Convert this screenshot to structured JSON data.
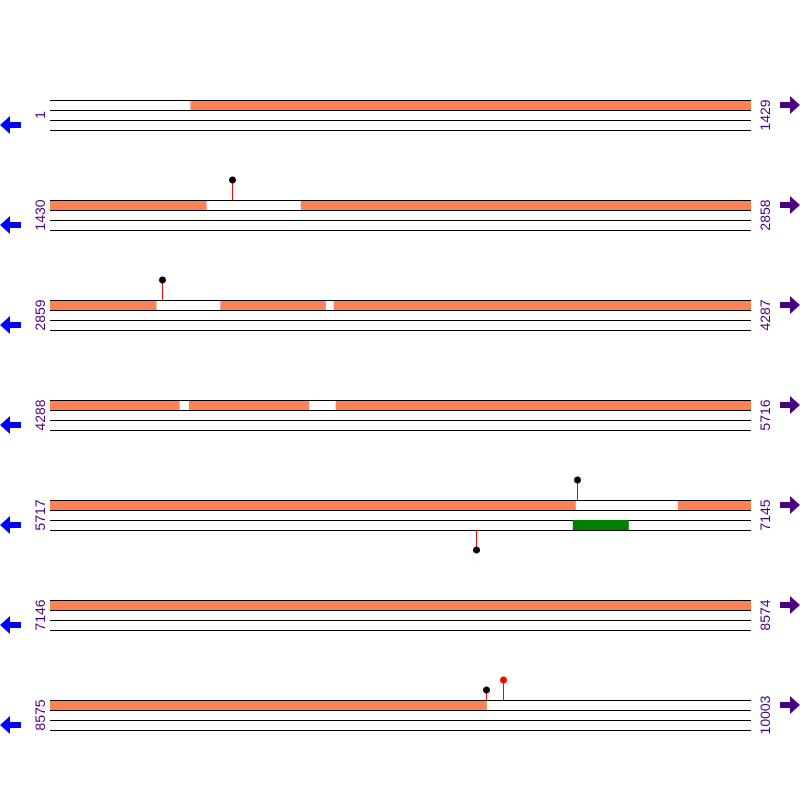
{
  "colors": {
    "feature": "#ff8256",
    "track_line": "#000000",
    "label": "#4b0082",
    "forward_arrow": "#4b0082",
    "reverse_arrow": "#0000ff",
    "marker_stem": "#ff0000",
    "marker_black": "#000000",
    "marker_red": "#ff0000",
    "green_box": "#008000"
  },
  "icons": {
    "forward": "arrow-right-icon",
    "reverse": "arrow-left-icon"
  },
  "rows": [
    {
      "start": 1,
      "end": 1429,
      "start_label": "1",
      "end_label": "1429",
      "forward_segments": [
        [
          287,
          1429
        ]
      ],
      "reverse_segments": [],
      "markers": []
    },
    {
      "start": 1430,
      "end": 2858,
      "start_label": "1430",
      "end_label": "2858",
      "forward_segments": [
        [
          1430,
          1749
        ],
        [
          1941,
          2858
        ]
      ],
      "reverse_segments": [],
      "markers": [
        {
          "pos": 1800,
          "strand": "forward",
          "color": "black",
          "tall": true
        }
      ]
    },
    {
      "start": 2859,
      "end": 4287,
      "start_label": "2859",
      "end_label": "4287",
      "forward_segments": [
        [
          2859,
          3076
        ],
        [
          3206,
          3421
        ],
        [
          3437,
          4287
        ]
      ],
      "reverse_segments": [],
      "markers": [
        {
          "pos": 3088,
          "strand": "forward",
          "color": "black",
          "tall": true
        }
      ]
    },
    {
      "start": 4288,
      "end": 5716,
      "start_label": "4288",
      "end_label": "5716",
      "forward_segments": [
        [
          4288,
          4552
        ],
        [
          4571,
          4816
        ],
        [
          4870,
          5716
        ]
      ],
      "reverse_segments": [],
      "markers": []
    },
    {
      "start": 5717,
      "end": 7145,
      "start_label": "5717",
      "end_label": "7145",
      "forward_segments": [
        [
          5717,
          6788
        ],
        [
          6996,
          7145
        ]
      ],
      "reverse_segments": [],
      "green_boxes": [
        [
          6782,
          6896
        ]
      ],
      "markers": [
        {
          "pos": 6790,
          "strand": "forward",
          "color": "black",
          "tall": true
        },
        {
          "pos": 6584,
          "strand": "reverse",
          "color": "black",
          "tall": true
        }
      ]
    },
    {
      "start": 7146,
      "end": 8574,
      "start_label": "7146",
      "end_label": "8574",
      "forward_segments": [
        [
          7146,
          8574
        ]
      ],
      "reverse_segments": [],
      "markers": []
    },
    {
      "start": 8575,
      "end": 10003,
      "start_label": "8575",
      "end_label": "10003",
      "forward_segments": [
        [
          8575,
          9465
        ]
      ],
      "reverse_segments": [],
      "markers": [
        {
          "pos": 9464,
          "strand": "forward",
          "color": "black",
          "tall": false
        },
        {
          "pos": 9498,
          "strand": "forward",
          "color": "red",
          "tall": true
        }
      ]
    }
  ]
}
